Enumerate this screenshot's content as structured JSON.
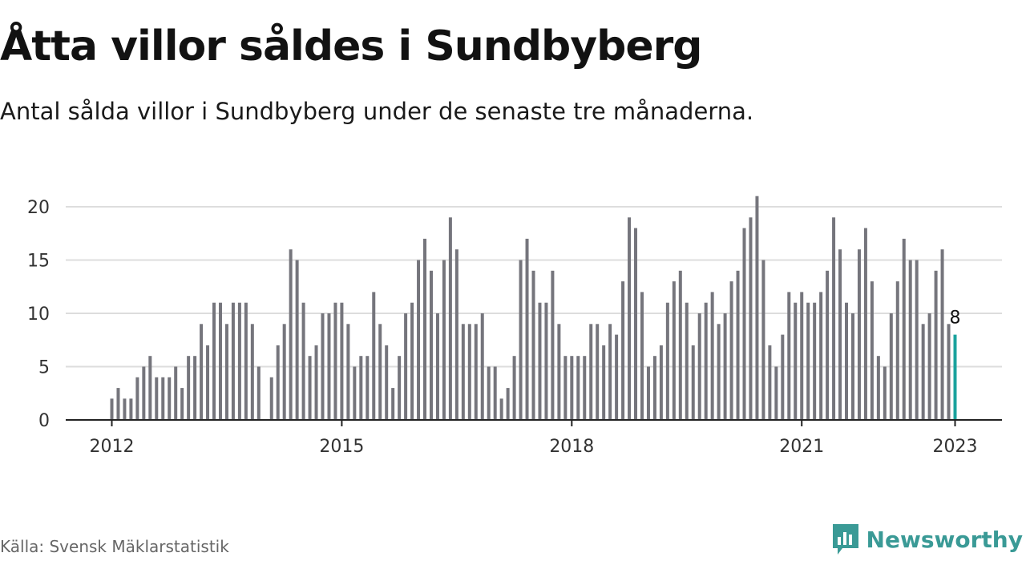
{
  "title": "Åtta villor såldes i Sundbyberg",
  "subtitle": "Antal sålda villor i Sundbyberg under de senaste tre månaderna.",
  "source": "Källa: Svensk Mäklarstatistik",
  "brand": {
    "name": "Newsworthy",
    "icon": "newsworthy-logo-icon",
    "color": "#3a9a96"
  },
  "colors": {
    "bars": "#75757c",
    "highlight": "#1aa29d",
    "grid": "#dddddd",
    "axis": "#222222"
  },
  "chart_data": {
    "type": "bar",
    "title": "",
    "xlabel": "",
    "ylabel": "",
    "ylim": [
      0,
      22
    ],
    "yticks": [
      0,
      5,
      10,
      15,
      20
    ],
    "grid": true,
    "x_start": "2012-01",
    "x_end": "2023-01",
    "xticks": [
      {
        "date": "2012-01",
        "label": "2012"
      },
      {
        "date": "2015-01",
        "label": "2015"
      },
      {
        "date": "2018-01",
        "label": "2018"
      },
      {
        "date": "2021-01",
        "label": "2021"
      },
      {
        "date": "2023-01",
        "label": "2023"
      }
    ],
    "series": [
      {
        "values": [
          2,
          3,
          2,
          2,
          4,
          5,
          6,
          4,
          4,
          4,
          5,
          3,
          6,
          6,
          9,
          7,
          11,
          11,
          9,
          11,
          11,
          11,
          9,
          5,
          null,
          4,
          7,
          9,
          16,
          15,
          11,
          6,
          7,
          10,
          10,
          11,
          11,
          9,
          5,
          6,
          6,
          12,
          9,
          7,
          3,
          6,
          10,
          11,
          15,
          17,
          14,
          10,
          15,
          19,
          16,
          9,
          9,
          9,
          10,
          5,
          5,
          2,
          3,
          6,
          15,
          17,
          14,
          11,
          11,
          14,
          9,
          6,
          6,
          6,
          6,
          9,
          9,
          7,
          9,
          8,
          13,
          19,
          18,
          12,
          5,
          6,
          7,
          11,
          13,
          14,
          11,
          7,
          10,
          11,
          12,
          9,
          10,
          13,
          14,
          18,
          19,
          21,
          15,
          7,
          5,
          8,
          12,
          11,
          12,
          11,
          11,
          12,
          14,
          19,
          16,
          11,
          10,
          16,
          18,
          13,
          6,
          5,
          10,
          13,
          17,
          15,
          15,
          9,
          10,
          14,
          16,
          9,
          8
        ]
      }
    ],
    "highlight": {
      "date": "2023-01",
      "value": 8,
      "label": "8"
    }
  }
}
